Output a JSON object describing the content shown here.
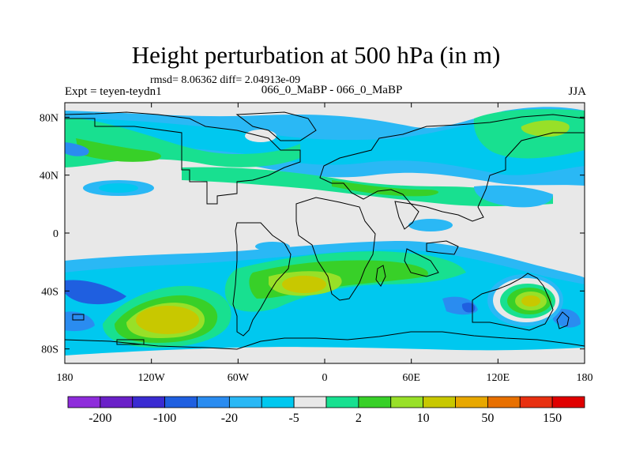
{
  "title": "Height perturbation at 500 hPa (in m)",
  "stats": "rmsd= 8.06362 diff= 2.04913e-09",
  "experiment": "Expt = teyen-teydn1",
  "comparison": "066_0_MaBP - 066_0_MaBP",
  "season": "JJA",
  "map": {
    "lon_range": [
      -180,
      180
    ],
    "lat_range": [
      -90,
      90
    ],
    "x_ticks": [
      {
        "lon": -180,
        "label": "180"
      },
      {
        "lon": -120,
        "label": "120W"
      },
      {
        "lon": -60,
        "label": "60W"
      },
      {
        "lon": 0,
        "label": "0"
      },
      {
        "lon": 60,
        "label": "60E"
      },
      {
        "lon": 120,
        "label": "120E"
      },
      {
        "lon": 180,
        "label": "180"
      }
    ],
    "y_ticks": [
      {
        "lat": 80,
        "label": "80N"
      },
      {
        "lat": 40,
        "label": "40N"
      },
      {
        "lat": 0,
        "label": "0"
      },
      {
        "lat": -40,
        "label": "40S"
      },
      {
        "lat": -80,
        "label": "80S"
      }
    ],
    "background_color": "#e8e8e8"
  },
  "colorbar": {
    "colors": [
      "#8e2cdb",
      "#6a20c8",
      "#3a2bd2",
      "#1f5fe0",
      "#2a8cf0",
      "#2ab8f5",
      "#00c8ef",
      "#e8e8e8",
      "#18e090",
      "#38d028",
      "#98e028",
      "#c8c800",
      "#e8a800",
      "#e87000",
      "#e83010",
      "#e00000"
    ],
    "labels": [
      {
        "boundary": 1,
        "text": "-200"
      },
      {
        "boundary": 3,
        "text": "-100"
      },
      {
        "boundary": 5,
        "text": "-20"
      },
      {
        "boundary": 7,
        "text": "-5"
      },
      {
        "boundary": 9,
        "text": "2"
      },
      {
        "boundary": 11,
        "text": "10"
      },
      {
        "boundary": 13,
        "text": "50"
      },
      {
        "boundary": 15,
        "text": "150"
      }
    ]
  }
}
